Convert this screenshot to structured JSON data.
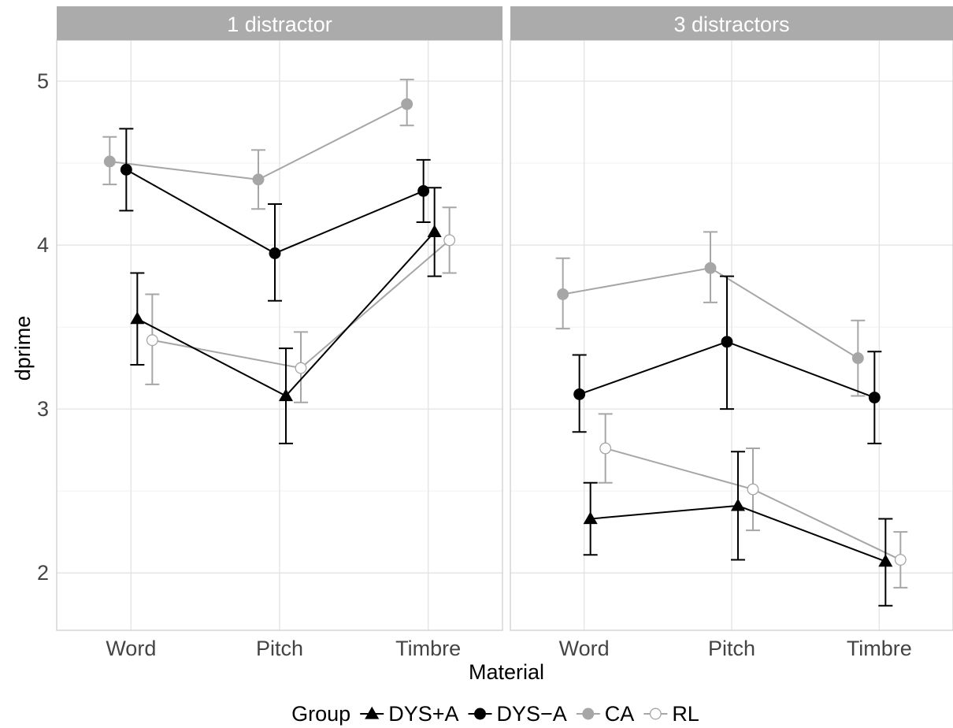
{
  "chart_data": {
    "type": "line",
    "xlabel": "Material",
    "ylabel": "dprime",
    "categories": [
      "Word",
      "Pitch",
      "Timbre"
    ],
    "ylim": [
      1.65,
      5.25
    ],
    "yticks": [
      2,
      3,
      4,
      5
    ],
    "grid": true,
    "legend": {
      "title": "Group",
      "position": "bottom",
      "entries": [
        "DYS+A",
        "DYS−A",
        "CA",
        "RL"
      ]
    },
    "group_styles": {
      "DYS+A": {
        "marker": "triangle",
        "color": "#000000",
        "fill": "#000000"
      },
      "DYS−A": {
        "marker": "circle",
        "color": "#000000",
        "fill": "#000000"
      },
      "CA": {
        "marker": "circle",
        "color": "#a6a6a6",
        "fill": "#a6a6a6"
      },
      "RL": {
        "marker": "circle",
        "color": "#a6a6a6",
        "fill": "#ffffff"
      }
    },
    "panels": [
      {
        "title": "1 distractor",
        "series": [
          {
            "name": "DYS+A",
            "values": [
              3.55,
              3.08,
              4.08
            ],
            "lower": [
              3.27,
              2.79,
              3.81
            ],
            "upper": [
              3.83,
              3.37,
              4.35
            ]
          },
          {
            "name": "DYS−A",
            "values": [
              4.46,
              3.95,
              4.33
            ],
            "lower": [
              4.21,
              3.66,
              4.14
            ],
            "upper": [
              4.71,
              4.25,
              4.52
            ]
          },
          {
            "name": "CA",
            "values": [
              4.51,
              4.4,
              4.86
            ],
            "lower": [
              4.37,
              4.22,
              4.73
            ],
            "upper": [
              4.66,
              4.58,
              5.01
            ]
          },
          {
            "name": "RL",
            "values": [
              3.42,
              3.25,
              4.03
            ],
            "lower": [
              3.15,
              3.04,
              3.83
            ],
            "upper": [
              3.7,
              3.47,
              4.23
            ]
          }
        ]
      },
      {
        "title": "3 distractors",
        "series": [
          {
            "name": "DYS+A",
            "values": [
              2.33,
              2.41,
              2.07
            ],
            "lower": [
              2.11,
              2.08,
              1.8
            ],
            "upper": [
              2.55,
              2.74,
              2.33
            ]
          },
          {
            "name": "DYS−A",
            "values": [
              3.09,
              3.41,
              3.07
            ],
            "lower": [
              2.86,
              3.0,
              2.79
            ],
            "upper": [
              3.33,
              3.81,
              3.35
            ]
          },
          {
            "name": "CA",
            "values": [
              3.7,
              3.86,
              3.31
            ],
            "lower": [
              3.49,
              3.65,
              3.08
            ],
            "upper": [
              3.92,
              4.08,
              3.54
            ]
          },
          {
            "name": "RL",
            "values": [
              2.76,
              2.51,
              2.08
            ],
            "lower": [
              2.55,
              2.26,
              1.91
            ],
            "upper": [
              2.97,
              2.76,
              2.25
            ]
          }
        ]
      }
    ]
  }
}
